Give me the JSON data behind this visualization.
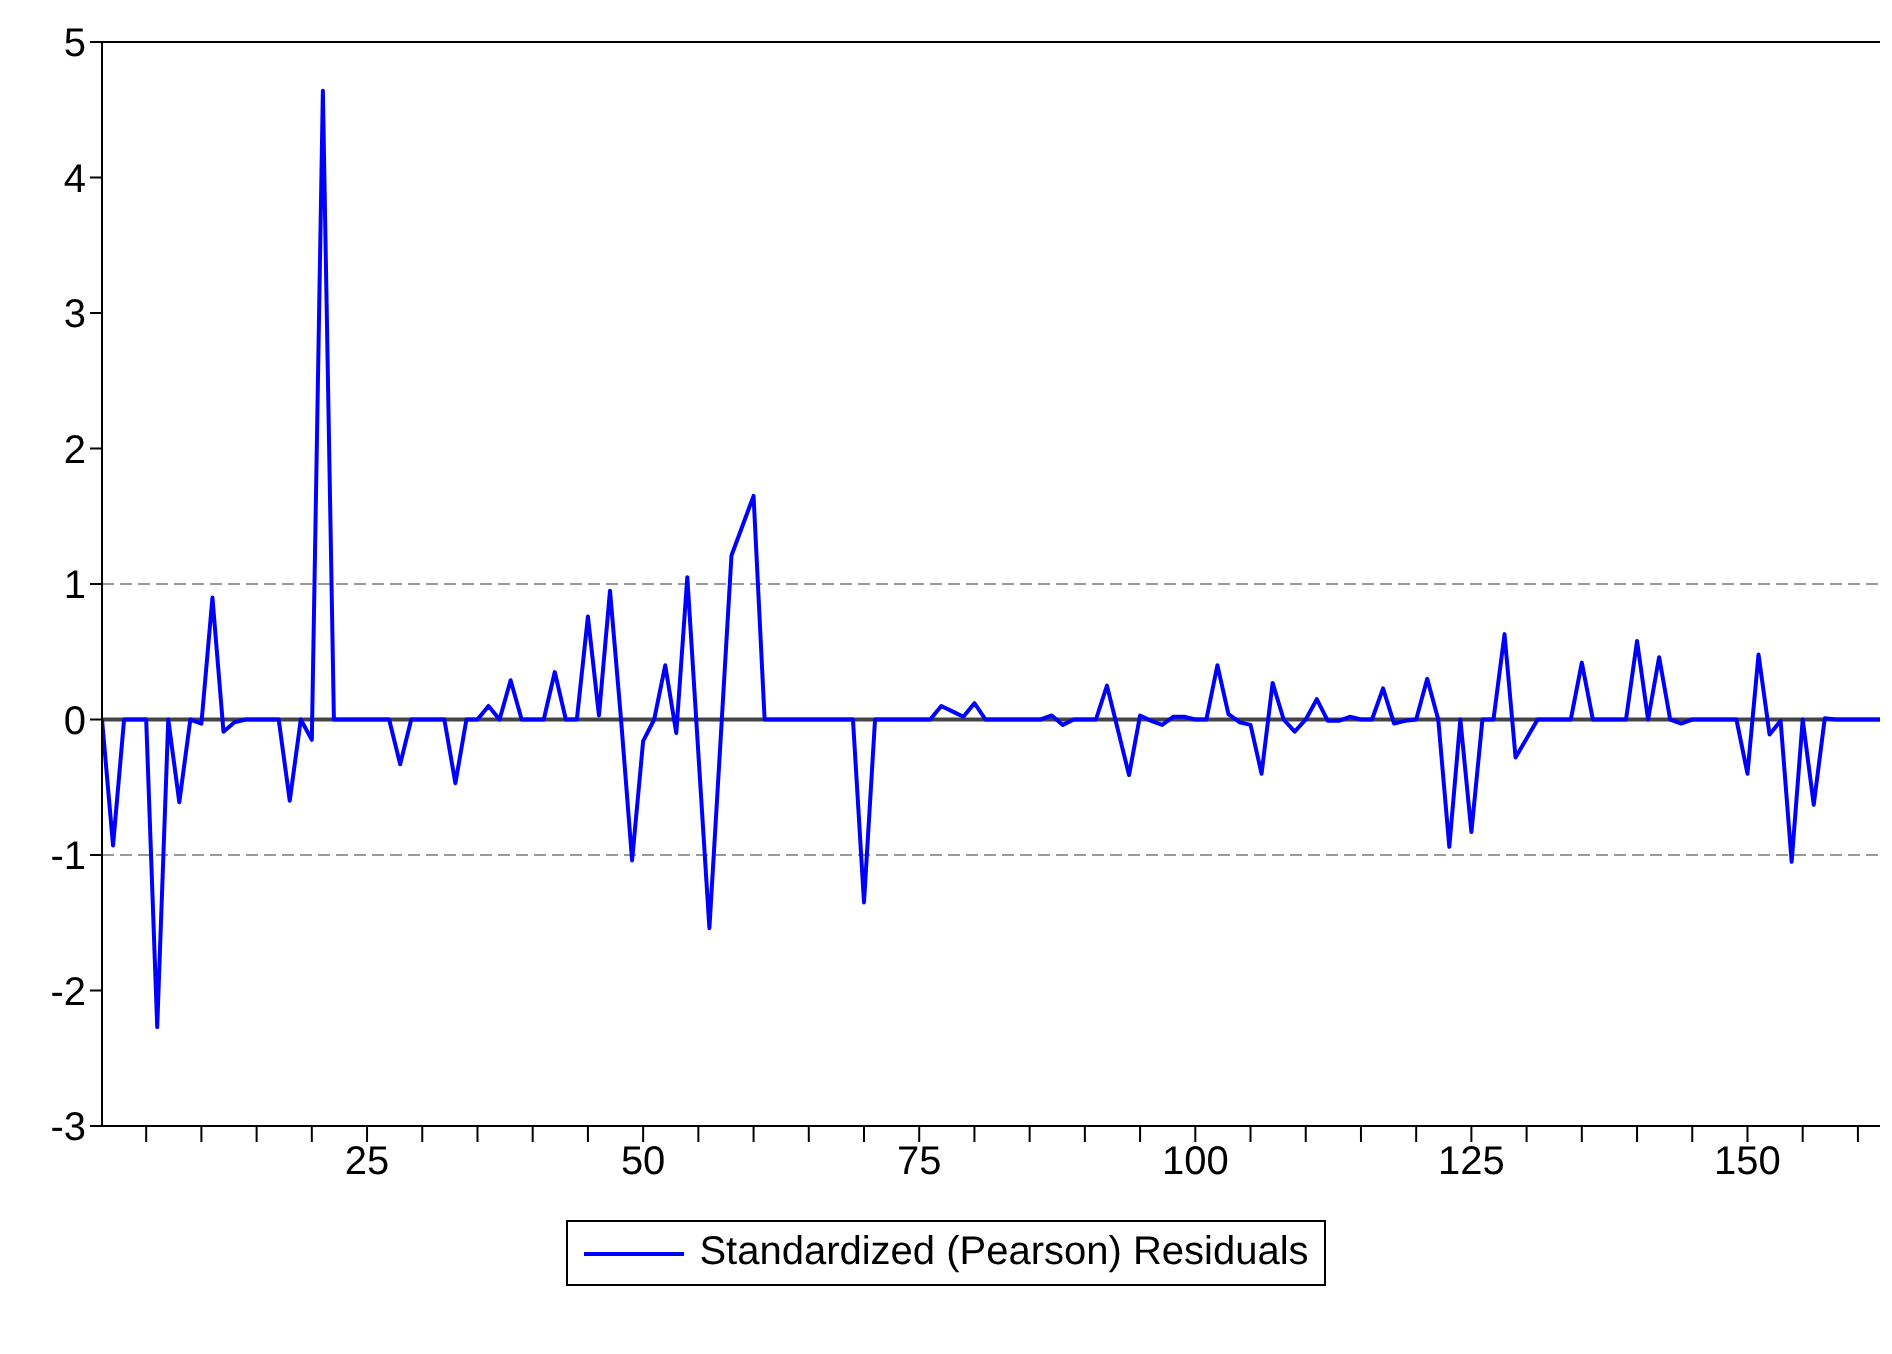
{
  "chart_data": {
    "type": "line",
    "x": [
      1,
      2,
      3,
      4,
      5,
      6,
      7,
      8,
      9,
      10,
      11,
      12,
      13,
      14,
      15,
      16,
      17,
      18,
      19,
      20,
      21,
      22,
      23,
      24,
      25,
      26,
      27,
      28,
      29,
      30,
      31,
      32,
      33,
      34,
      35,
      36,
      37,
      38,
      39,
      40,
      41,
      42,
      43,
      44,
      45,
      46,
      47,
      48,
      49,
      50,
      51,
      52,
      53,
      54,
      55,
      56,
      57,
      58,
      59,
      60,
      61,
      62,
      63,
      64,
      65,
      66,
      67,
      68,
      69,
      70,
      71,
      72,
      73,
      74,
      75,
      76,
      77,
      78,
      79,
      80,
      81,
      82,
      83,
      84,
      85,
      86,
      87,
      88,
      89,
      90,
      91,
      92,
      93,
      94,
      95,
      96,
      97,
      98,
      99,
      100,
      101,
      102,
      103,
      104,
      105,
      106,
      107,
      108,
      109,
      110,
      111,
      112,
      113,
      114,
      115,
      116,
      117,
      118,
      119,
      120,
      121,
      122,
      123,
      124,
      125,
      126,
      127,
      128,
      129,
      130,
      131,
      132,
      133,
      134,
      135,
      136,
      137,
      138,
      139,
      140,
      141,
      142,
      143,
      144,
      145,
      146,
      147,
      148,
      149,
      150,
      151,
      152,
      153,
      154,
      155,
      156,
      157,
      158,
      159,
      160,
      161,
      162
    ],
    "series": [
      {
        "name": "Standardized (Pearson) Residuals",
        "color": "#0000ff",
        "values": [
          0,
          -0.93,
          0,
          0,
          0,
          -2.27,
          0,
          -0.61,
          0,
          -0.03,
          0.9,
          -0.09,
          -0.02,
          0,
          0,
          0,
          0,
          -0.6,
          0,
          -0.15,
          4.64,
          0,
          0,
          0,
          0,
          0,
          0,
          -0.33,
          0,
          0,
          0,
          0,
          -0.47,
          0,
          0,
          0.1,
          0,
          0.29,
          0,
          0,
          0,
          0.35,
          0,
          0,
          0.76,
          0.03,
          0.95,
          0,
          -1.04,
          -0.16,
          0,
          0.4,
          -0.1,
          1.05,
          -0.25,
          -1.54,
          -0.17,
          1.21,
          1.43,
          1.65,
          0,
          0,
          0,
          0,
          0,
          0,
          0,
          0,
          0,
          -1.35,
          0,
          0,
          0,
          0,
          0,
          0,
          0.1,
          0.06,
          0.02,
          0.12,
          0,
          0,
          0,
          0,
          0,
          0,
          0.03,
          -0.04,
          0,
          0,
          0,
          0.25,
          -0.08,
          -0.41,
          0.03,
          -0.01,
          -0.04,
          0.02,
          0.02,
          0,
          0,
          0.4,
          0.04,
          -0.02,
          -0.04,
          -0.4,
          0.27,
          0,
          -0.09,
          0,
          0.15,
          -0.01,
          -0.01,
          0.02,
          0,
          0,
          0.23,
          -0.03,
          -0.01,
          0,
          0.3,
          0,
          -0.94,
          0,
          -0.83,
          0,
          0,
          0.63,
          -0.28,
          -0.14,
          0,
          0,
          0,
          0,
          0.42,
          0,
          0,
          0,
          0,
          0.58,
          0,
          0.46,
          0,
          -0.03,
          0,
          0,
          0,
          0,
          0,
          -0.4,
          0.48,
          -0.11,
          -0.01,
          -1.05,
          0,
          -0.63,
          0.01,
          0,
          0,
          0,
          0,
          0
        ]
      }
    ],
    "xlim": [
      1,
      162
    ],
    "xticks": [
      {
        "value": 5,
        "label": null
      },
      {
        "value": 10,
        "label": null
      },
      {
        "value": 15,
        "label": null
      },
      {
        "value": 20,
        "label": null
      },
      25,
      {
        "value": 30,
        "label": null
      },
      {
        "value": 35,
        "label": null
      },
      {
        "value": 40,
        "label": null
      },
      {
        "value": 45,
        "label": null
      },
      50,
      {
        "value": 55,
        "label": null
      },
      {
        "value": 60,
        "label": null
      },
      {
        "value": 65,
        "label": null
      },
      {
        "value": 70,
        "label": null
      },
      75,
      {
        "value": 80,
        "label": null
      },
      {
        "value": 85,
        "label": null
      },
      {
        "value": 90,
        "label": null
      },
      {
        "value": 95,
        "label": null
      },
      100,
      {
        "value": 105,
        "label": null
      },
      {
        "value": 110,
        "label": null
      },
      {
        "value": 115,
        "label": null
      },
      {
        "value": 120,
        "label": null
      },
      125,
      {
        "value": 130,
        "label": null
      },
      {
        "value": 135,
        "label": null
      },
      {
        "value": 140,
        "label": null
      },
      {
        "value": 145,
        "label": null
      },
      150,
      {
        "value": 155,
        "label": null
      },
      {
        "value": 160,
        "label": null
      }
    ],
    "ylim": [
      -3,
      5
    ],
    "yticks": [
      -3,
      -2,
      -1,
      0,
      1,
      2,
      3,
      4,
      5
    ],
    "ref_lines": [
      {
        "axis": "y",
        "value": 1,
        "color": "#999999",
        "line_style": "dashed"
      },
      {
        "axis": "y",
        "value": 0,
        "color": "#444444",
        "line_style": "solid"
      },
      {
        "axis": "y",
        "value": -1,
        "color": "#999999",
        "line_style": "dashed"
      }
    ],
    "grid": false,
    "legend": "bottom"
  }
}
